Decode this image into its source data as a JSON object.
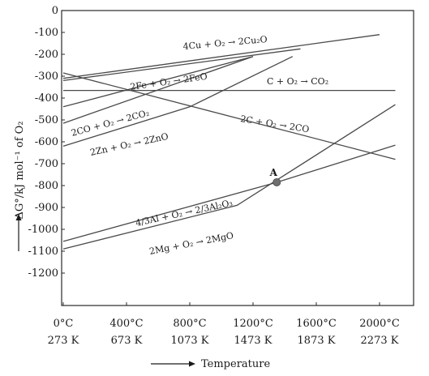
{
  "chart_data": {
    "type": "line",
    "title": "",
    "ylabel": "ΔG°/kJ mol⁻¹ of O₂",
    "xlabel": "Temperature",
    "ylim": [
      -1300,
      0
    ],
    "xlim": [
      0,
      2100
    ],
    "y_ticks": [
      {
        "value": 0,
        "label": "0"
      },
      {
        "value": -100,
        "label": "-100"
      },
      {
        "value": -200,
        "label": "-200"
      },
      {
        "value": -300,
        "label": "-300"
      },
      {
        "value": -400,
        "label": "-400"
      },
      {
        "value": -500,
        "label": "-500"
      },
      {
        "value": -600,
        "label": "-600"
      },
      {
        "value": -700,
        "label": "-700"
      },
      {
        "value": -800,
        "label": "-800"
      },
      {
        "value": -900,
        "label": "-900"
      },
      {
        "value": -1000,
        "label": "-1000"
      },
      {
        "value": -1100,
        "label": "-1100"
      },
      {
        "value": -1200,
        "label": "-1200"
      }
    ],
    "x_ticks": [
      {
        "value": 0,
        "celsius": "0°C",
        "kelvin": "273 K"
      },
      {
        "value": 400,
        "celsius": "400°C",
        "kelvin": "673 K"
      },
      {
        "value": 800,
        "celsius": "800°C",
        "kelvin": "1073 K"
      },
      {
        "value": 1200,
        "celsius": "1200°C",
        "kelvin": "1473 K"
      },
      {
        "value": 1600,
        "celsius": "1600°C",
        "kelvin": "1873 K"
      },
      {
        "value": 2000,
        "celsius": "2000°C",
        "kelvin": "2273 K"
      }
    ],
    "series": [
      {
        "name": "4Cu + O₂ → 2Cu₂O",
        "points": [
          [
            0,
            -320
          ],
          [
            1500,
            -175
          ]
        ]
      },
      {
        "name": "2Fe + O₂ → 2FeO",
        "points": [
          [
            0,
            -440
          ],
          [
            1200,
            -210
          ]
        ]
      },
      {
        "name": "C + O₂ → CO₂",
        "points": [
          [
            0,
            -365
          ],
          [
            2100,
            -365
          ]
        ]
      },
      {
        "name": "2CO + O₂ → 2CO₂",
        "points": [
          [
            0,
            -515
          ],
          [
            1200,
            -210
          ]
        ]
      },
      {
        "name": "2C + O₂ → 2CO",
        "points": [
          [
            0,
            -285
          ],
          [
            2100,
            -680
          ]
        ]
      },
      {
        "name": "2Zn + O₂ → 2ZnO",
        "points": [
          [
            0,
            -620
          ],
          [
            800,
            -440
          ],
          [
            1450,
            -210
          ]
        ]
      },
      {
        "name": "4/3Al + O₂ → 2/3Al₂O₃",
        "points": [
          [
            0,
            -1055
          ],
          [
            1350,
            -785
          ],
          [
            2100,
            -615
          ]
        ]
      },
      {
        "name": "2Mg + O₂ → 2MgO",
        "points": [
          [
            0,
            -1090
          ],
          [
            1100,
            -890
          ],
          [
            2100,
            -430
          ]
        ]
      },
      {
        "name": "",
        "points": [
          [
            0,
            -310
          ],
          [
            2000,
            -110
          ]
        ]
      }
    ],
    "annotations": [
      {
        "label": "A",
        "x": 1350,
        "y": -785
      }
    ]
  }
}
